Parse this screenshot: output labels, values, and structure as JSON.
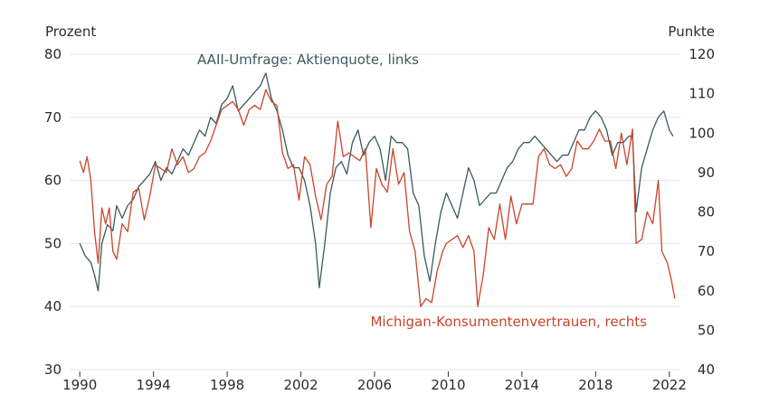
{
  "chart_data": {
    "type": "line",
    "x_unit": "year",
    "xlim": [
      1989.5,
      2022.6
    ],
    "x_ticks": [
      1990,
      1994,
      1998,
      2002,
      2006,
      2010,
      2014,
      2018,
      2022
    ],
    "x_tick_labels": [
      "1990",
      "1994",
      "1998",
      "2002",
      "2006",
      "2010",
      "2014",
      "2018",
      "2022"
    ],
    "left_axis": {
      "label": "Prozent",
      "ylim": [
        30,
        80
      ],
      "ticks": [
        30,
        40,
        50,
        60,
        70,
        80
      ],
      "tick_labels": [
        "30",
        "40",
        "50",
        "60",
        "70",
        "80"
      ]
    },
    "right_axis": {
      "label": "Punkte",
      "ylim": [
        40,
        120
      ],
      "ticks": [
        40,
        50,
        60,
        70,
        80,
        90,
        100,
        110,
        120
      ],
      "tick_labels": [
        "40",
        "50",
        "60",
        "70",
        "80",
        "90",
        "100",
        "110",
        "120"
      ]
    },
    "grid": true,
    "series": [
      {
        "name": "AAII-Umfrage: Aktienquote, links",
        "axis": "left",
        "color": "#3a5a5e",
        "points": [
          [
            1990.0,
            50
          ],
          [
            1990.3,
            48
          ],
          [
            1990.6,
            47
          ],
          [
            1990.8,
            45
          ],
          [
            1991.0,
            42.5
          ],
          [
            1991.2,
            50
          ],
          [
            1991.5,
            53
          ],
          [
            1991.8,
            52
          ],
          [
            1992.0,
            56
          ],
          [
            1992.3,
            54
          ],
          [
            1992.6,
            56
          ],
          [
            1992.9,
            57
          ],
          [
            1993.2,
            59
          ],
          [
            1993.5,
            60
          ],
          [
            1993.8,
            61
          ],
          [
            1994.1,
            63
          ],
          [
            1994.4,
            60
          ],
          [
            1994.7,
            62
          ],
          [
            1995.0,
            61
          ],
          [
            1995.3,
            63
          ],
          [
            1995.6,
            65
          ],
          [
            1995.9,
            64
          ],
          [
            1996.2,
            66
          ],
          [
            1996.5,
            68
          ],
          [
            1996.8,
            67
          ],
          [
            1997.1,
            70
          ],
          [
            1997.4,
            69
          ],
          [
            1997.7,
            72
          ],
          [
            1998.0,
            73
          ],
          [
            1998.3,
            75
          ],
          [
            1998.6,
            71
          ],
          [
            1998.9,
            72
          ],
          [
            1999.2,
            73
          ],
          [
            1999.5,
            74
          ],
          [
            1999.8,
            75
          ],
          [
            2000.1,
            77
          ],
          [
            2000.4,
            73
          ],
          [
            2000.7,
            71
          ],
          [
            2001.0,
            68
          ],
          [
            2001.3,
            64
          ],
          [
            2001.6,
            62
          ],
          [
            2001.9,
            62
          ],
          [
            2002.2,
            60
          ],
          [
            2002.5,
            56
          ],
          [
            2002.8,
            50
          ],
          [
            2003.0,
            43
          ],
          [
            2003.3,
            50
          ],
          [
            2003.6,
            58
          ],
          [
            2003.9,
            62
          ],
          [
            2004.2,
            63
          ],
          [
            2004.5,
            61
          ],
          [
            2004.8,
            66
          ],
          [
            2005.1,
            68
          ],
          [
            2005.4,
            64
          ],
          [
            2005.7,
            66
          ],
          [
            2006.0,
            67
          ],
          [
            2006.3,
            65
          ],
          [
            2006.6,
            60
          ],
          [
            2006.9,
            67
          ],
          [
            2007.2,
            66
          ],
          [
            2007.5,
            66
          ],
          [
            2007.8,
            65
          ],
          [
            2008.1,
            58
          ],
          [
            2008.4,
            56
          ],
          [
            2008.7,
            48
          ],
          [
            2009.0,
            44
          ],
          [
            2009.3,
            50
          ],
          [
            2009.6,
            55
          ],
          [
            2009.9,
            58
          ],
          [
            2010.2,
            56
          ],
          [
            2010.5,
            54
          ],
          [
            2010.8,
            58
          ],
          [
            2011.1,
            62
          ],
          [
            2011.4,
            60
          ],
          [
            2011.7,
            56
          ],
          [
            2012.0,
            57
          ],
          [
            2012.3,
            58
          ],
          [
            2012.6,
            58
          ],
          [
            2012.9,
            60
          ],
          [
            2013.2,
            62
          ],
          [
            2013.5,
            63
          ],
          [
            2013.8,
            65
          ],
          [
            2014.1,
            66
          ],
          [
            2014.4,
            66
          ],
          [
            2014.7,
            67
          ],
          [
            2015.0,
            66
          ],
          [
            2015.3,
            65
          ],
          [
            2015.6,
            64
          ],
          [
            2015.9,
            63
          ],
          [
            2016.2,
            64
          ],
          [
            2016.5,
            64
          ],
          [
            2016.8,
            66
          ],
          [
            2017.1,
            68
          ],
          [
            2017.4,
            68
          ],
          [
            2017.7,
            70
          ],
          [
            2018.0,
            71
          ],
          [
            2018.3,
            70
          ],
          [
            2018.6,
            68
          ],
          [
            2018.9,
            64
          ],
          [
            2019.2,
            66
          ],
          [
            2019.5,
            66
          ],
          [
            2019.8,
            67
          ],
          [
            2020.0,
            67
          ],
          [
            2020.2,
            55
          ],
          [
            2020.5,
            62
          ],
          [
            2020.8,
            65
          ],
          [
            2021.1,
            68
          ],
          [
            2021.4,
            70
          ],
          [
            2021.7,
            71
          ],
          [
            2022.0,
            68
          ],
          [
            2022.2,
            67
          ]
        ]
      },
      {
        "name": "Michigan-Konsumentenvertrauen, rechts",
        "axis": "right",
        "color": "#c8452b",
        "points": [
          [
            1990.0,
            93
          ],
          [
            1990.2,
            90
          ],
          [
            1990.4,
            94
          ],
          [
            1990.6,
            88
          ],
          [
            1990.8,
            75
          ],
          [
            1991.0,
            67
          ],
          [
            1991.2,
            81
          ],
          [
            1991.4,
            77
          ],
          [
            1991.6,
            81
          ],
          [
            1991.8,
            70
          ],
          [
            1992.0,
            68
          ],
          [
            1992.3,
            77
          ],
          [
            1992.6,
            75
          ],
          [
            1992.9,
            85
          ],
          [
            1993.2,
            86
          ],
          [
            1993.5,
            78
          ],
          [
            1993.8,
            84
          ],
          [
            1994.1,
            92
          ],
          [
            1994.4,
            91
          ],
          [
            1994.7,
            90
          ],
          [
            1995.0,
            96
          ],
          [
            1995.3,
            92
          ],
          [
            1995.6,
            94
          ],
          [
            1995.9,
            90
          ],
          [
            1996.2,
            91
          ],
          [
            1996.5,
            94
          ],
          [
            1996.8,
            95
          ],
          [
            1997.1,
            98
          ],
          [
            1997.4,
            102
          ],
          [
            1997.7,
            106
          ],
          [
            1998.0,
            107
          ],
          [
            1998.3,
            108
          ],
          [
            1998.6,
            106
          ],
          [
            1998.9,
            102
          ],
          [
            1999.2,
            106
          ],
          [
            1999.5,
            107
          ],
          [
            1999.8,
            106
          ],
          [
            2000.1,
            111
          ],
          [
            2000.4,
            108
          ],
          [
            2000.7,
            107
          ],
          [
            2001.0,
            95
          ],
          [
            2001.3,
            91
          ],
          [
            2001.6,
            92
          ],
          [
            2001.9,
            83
          ],
          [
            2002.2,
            94
          ],
          [
            2002.5,
            92
          ],
          [
            2002.8,
            84
          ],
          [
            2003.1,
            78
          ],
          [
            2003.4,
            87
          ],
          [
            2003.7,
            89
          ],
          [
            2004.0,
            103
          ],
          [
            2004.3,
            94
          ],
          [
            2004.6,
            95
          ],
          [
            2004.9,
            94
          ],
          [
            2005.2,
            93
          ],
          [
            2005.5,
            96
          ],
          [
            2005.8,
            76
          ],
          [
            2006.1,
            91
          ],
          [
            2006.4,
            87
          ],
          [
            2006.7,
            85
          ],
          [
            2007.0,
            96
          ],
          [
            2007.3,
            87
          ],
          [
            2007.6,
            90
          ],
          [
            2007.9,
            75
          ],
          [
            2008.2,
            70
          ],
          [
            2008.5,
            56
          ],
          [
            2008.8,
            58
          ],
          [
            2009.1,
            57
          ],
          [
            2009.4,
            65
          ],
          [
            2009.7,
            70
          ],
          [
            2009.9,
            72
          ],
          [
            2010.2,
            73
          ],
          [
            2010.5,
            74
          ],
          [
            2010.8,
            71
          ],
          [
            2011.1,
            74
          ],
          [
            2011.4,
            70
          ],
          [
            2011.6,
            56
          ],
          [
            2011.9,
            64
          ],
          [
            2012.2,
            76
          ],
          [
            2012.5,
            73
          ],
          [
            2012.8,
            82
          ],
          [
            2013.1,
            73
          ],
          [
            2013.4,
            84
          ],
          [
            2013.7,
            77
          ],
          [
            2014.0,
            82
          ],
          [
            2014.3,
            82
          ],
          [
            2014.6,
            82
          ],
          [
            2014.9,
            94
          ],
          [
            2015.2,
            96
          ],
          [
            2015.5,
            92
          ],
          [
            2015.8,
            91
          ],
          [
            2016.1,
            92
          ],
          [
            2016.4,
            89
          ],
          [
            2016.7,
            91
          ],
          [
            2017.0,
            98
          ],
          [
            2017.3,
            96
          ],
          [
            2017.6,
            96
          ],
          [
            2017.9,
            98
          ],
          [
            2018.2,
            101
          ],
          [
            2018.5,
            98
          ],
          [
            2018.8,
            98
          ],
          [
            2019.1,
            91
          ],
          [
            2019.4,
            100
          ],
          [
            2019.7,
            92
          ],
          [
            2020.0,
            101
          ],
          [
            2020.2,
            72
          ],
          [
            2020.5,
            73
          ],
          [
            2020.8,
            80
          ],
          [
            2021.1,
            77
          ],
          [
            2021.4,
            88
          ],
          [
            2021.6,
            70
          ],
          [
            2021.9,
            67
          ],
          [
            2022.1,
            63
          ],
          [
            2022.3,
            58
          ]
        ]
      }
    ],
    "annotations": [
      {
        "text": "AAII-Umfrage: Aktienquote, links",
        "series": 0
      },
      {
        "text": "Michigan-Konsumentenvertrauen, rechts",
        "series": 1
      }
    ]
  }
}
